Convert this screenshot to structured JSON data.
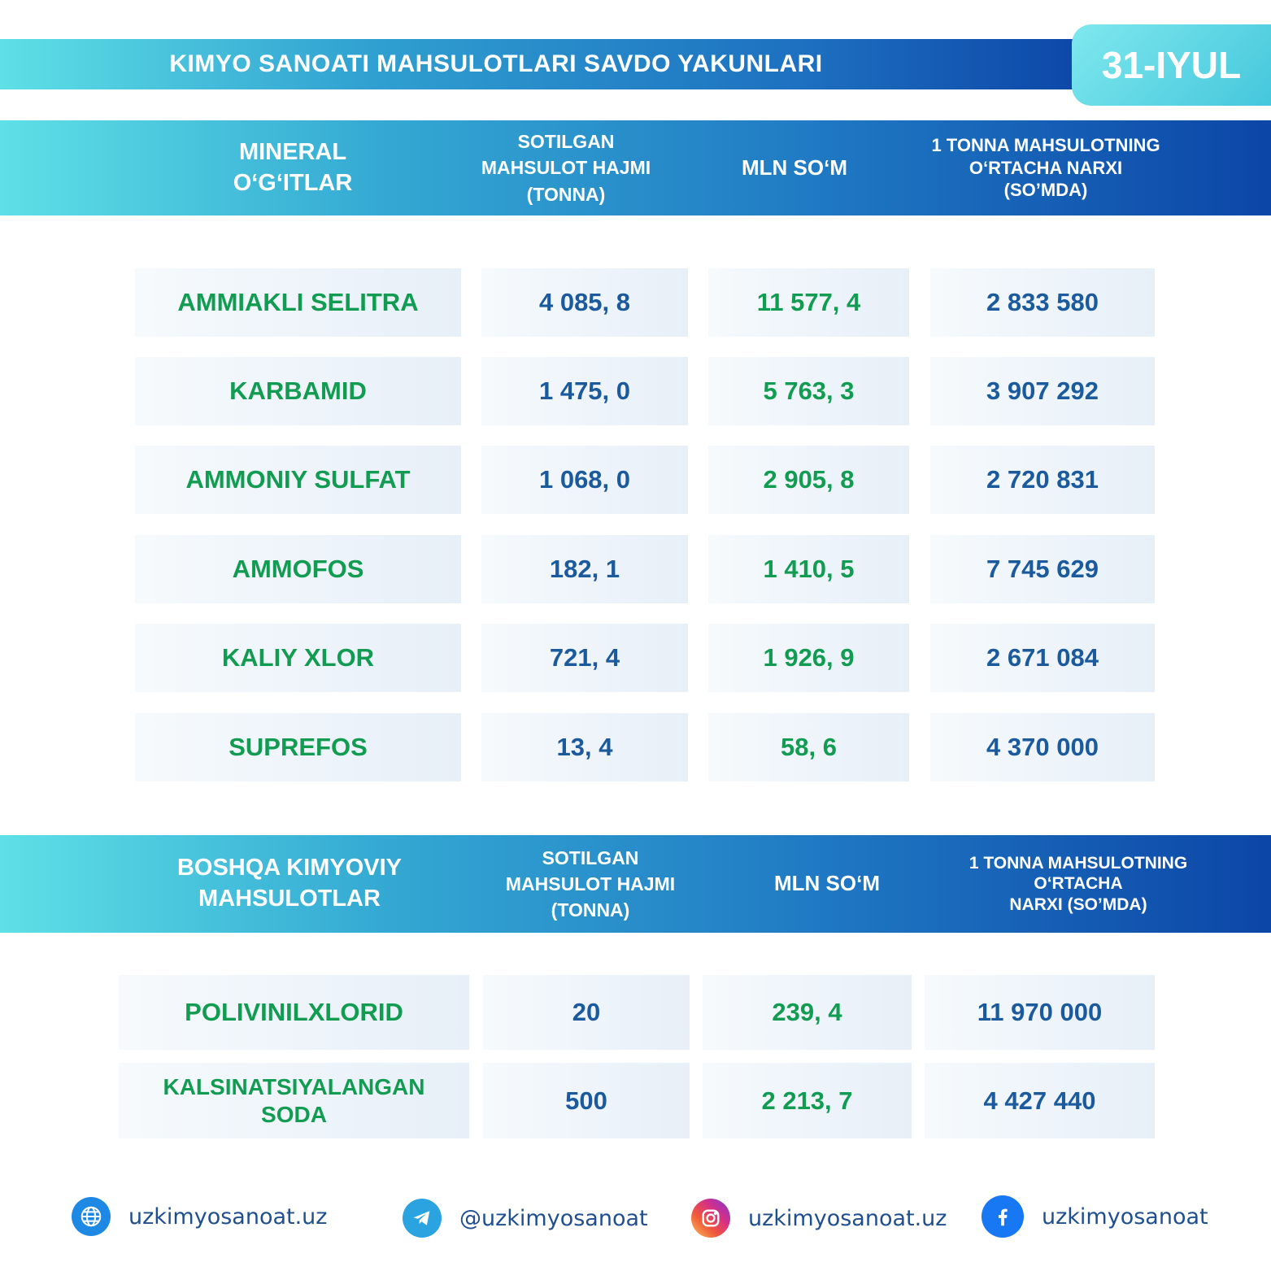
{
  "header": {
    "title": "KIMYO SANOATI MAHSULOTLARI SAVDO YAKUNLARI",
    "date": "31-IYUL"
  },
  "section1": {
    "col1": [
      "MINERAL",
      "O‘G‘ITLAR"
    ],
    "col2": [
      "SOTILGAN",
      "MAHSULOT HAJMI",
      "(TONNA)"
    ],
    "col3": "MLN SO‘M",
    "col4": [
      "1 TONNA MAHSULOTNING",
      "O‘RTACHA NARXI",
      "(SO’MDA)"
    ],
    "rows": [
      {
        "name": "AMMIAKLI SELITRA",
        "volume": "4 085, 8",
        "mln": "11 577, 4",
        "price": "2 833 580"
      },
      {
        "name": "KARBAMID",
        "volume": "1 475, 0",
        "mln": "5 763, 3",
        "price": "3 907 292"
      },
      {
        "name": "AMMONIY SULFAT",
        "volume": "1 068, 0",
        "mln": "2 905, 8",
        "price": "2 720 831"
      },
      {
        "name": "AMMOFOS",
        "volume": "182, 1",
        "mln": "1 410, 5",
        "price": "7 745 629"
      },
      {
        "name": "KALIY XLOR",
        "volume": "721, 4",
        "mln": "1 926, 9",
        "price": "2 671 084"
      },
      {
        "name": "SUPREFOS",
        "volume": "13, 4",
        "mln": "58, 6",
        "price": "4 370 000"
      }
    ]
  },
  "section2": {
    "col1": [
      "BOSHQA KIMYOVIY",
      "MAHSULOTLAR"
    ],
    "col2": [
      "SOTILGAN",
      "MAHSULOT HAJMI",
      "(TONNA)"
    ],
    "col3": "MLN SO‘M",
    "col4": [
      "1 TONNA MAHSULOTNING",
      "O‘RTACHA",
      "NARXI (SO’MDA)"
    ],
    "rows": [
      {
        "name": [
          "POLIVINILXLORID"
        ],
        "volume": "20",
        "mln": "239, 4",
        "price": "11 970 000"
      },
      {
        "name": [
          "KALSINATSIYALANGAN",
          "SODA"
        ],
        "volume": "500",
        "mln": "2 213, 7",
        "price": "4 427 440"
      }
    ]
  },
  "footer": {
    "website": "uzkimyosanoat.uz",
    "telegram": "@uzkimyosanoat",
    "instagram": "uzkimyosanoat.uz",
    "facebook": "uzkimyosanoat",
    "icons": [
      "globe-icon",
      "telegram-icon",
      "instagram-icon",
      "facebook-icon"
    ]
  },
  "colors": {
    "accent_blue": "#0d47a8",
    "accent_cyan": "#5ee0e6",
    "name_green": "#129c52",
    "value_blue": "#1b5a9c"
  }
}
